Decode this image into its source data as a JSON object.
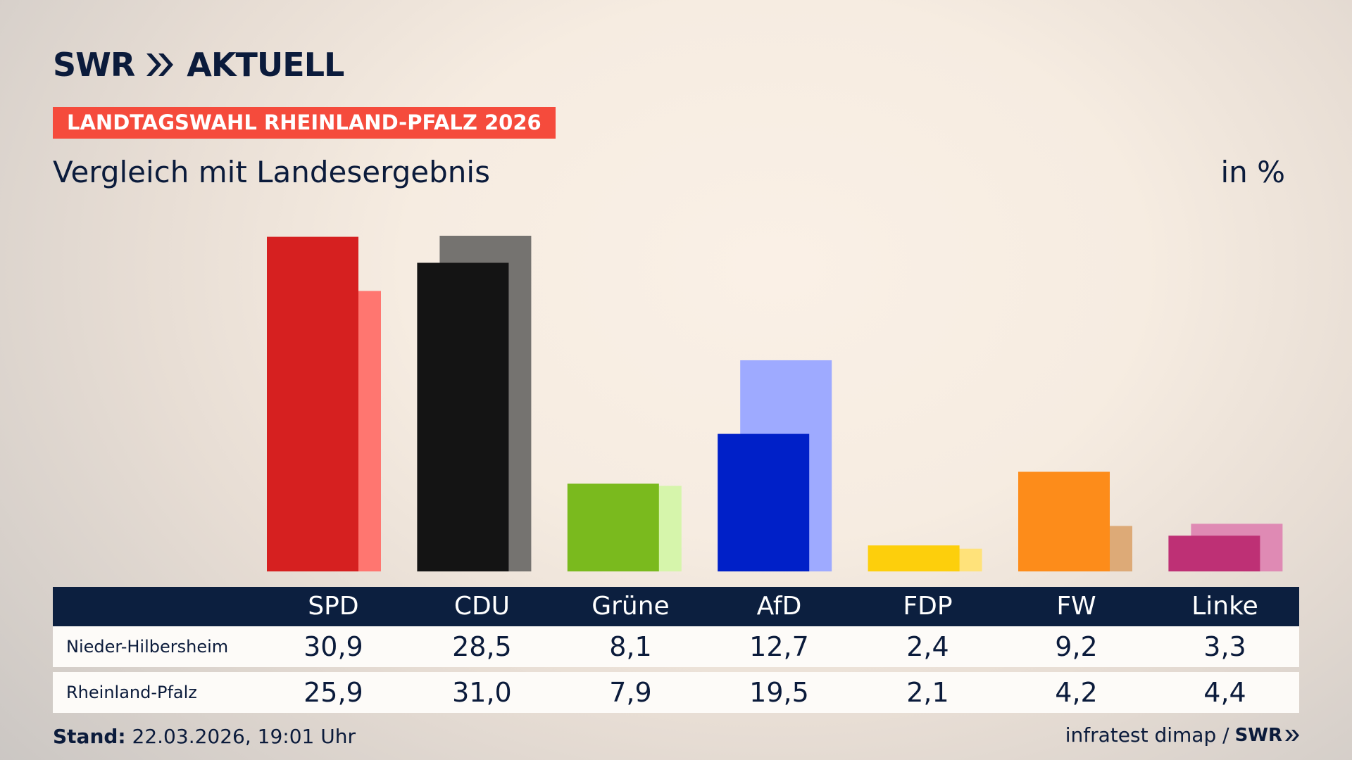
{
  "header": {
    "logo_text": "SWR",
    "logo_product": "AKTUELL",
    "badge": "LANDTAGSWAHL RHEINLAND-PFALZ 2026",
    "subtitle": "Vergleich mit Landesergebnis",
    "unit": "in %"
  },
  "colors": {
    "accent_badge": "#f54b3c",
    "navy": "#0c1f3f",
    "SPD": [
      "#d62020",
      "#ff7670"
    ],
    "CDU": [
      "#141414",
      "#757370"
    ],
    "Grüne": [
      "#7aba1e",
      "#d6f5ab"
    ],
    "AfD": [
      "#0020c8",
      "#9eaaff"
    ],
    "FDP": [
      "#fdcf0c",
      "#ffe27a"
    ],
    "FW": [
      "#fd8c1a",
      "#ddaa77"
    ],
    "Linke": [
      "#be3075",
      "#df8ab4"
    ]
  },
  "chart_data": {
    "type": "bar",
    "categories": [
      "SPD",
      "CDU",
      "Grüne",
      "AfD",
      "FDP",
      "FW",
      "Linke"
    ],
    "series": [
      {
        "name": "Nieder-Hilbersheim",
        "values": [
          30.9,
          28.5,
          8.1,
          12.7,
          2.4,
          9.2,
          3.3
        ]
      },
      {
        "name": "Rheinland-Pfalz",
        "values": [
          25.9,
          31.0,
          7.9,
          19.5,
          2.1,
          4.2,
          4.4
        ]
      }
    ],
    "series_display": [
      [
        "30,9",
        "28,5",
        "8,1",
        "12,7",
        "2,4",
        "9,2",
        "3,3"
      ],
      [
        "25,9",
        "31,0",
        "7,9",
        "19,5",
        "2,1",
        "4,2",
        "4,4"
      ]
    ],
    "ylim": [
      0,
      31.0
    ],
    "grid": false,
    "legend": "table-below"
  },
  "footer": {
    "stand_label": "Stand:",
    "stand_value": "22.03.2026, 19:01 Uhr",
    "source": "infratest dimap /",
    "source_logo": "SWR"
  }
}
